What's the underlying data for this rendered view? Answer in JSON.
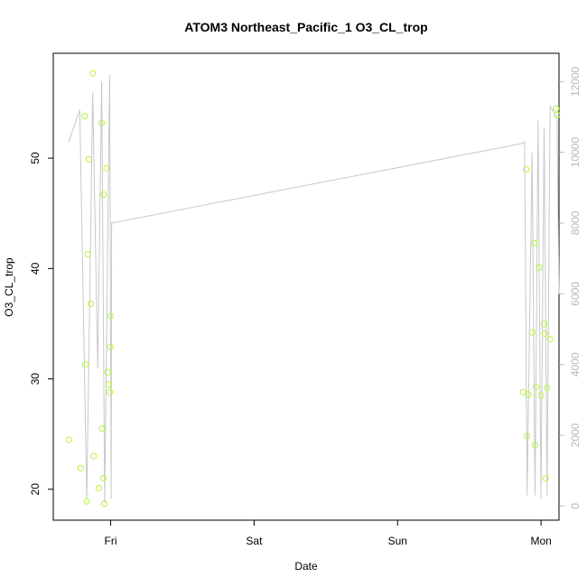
{
  "chart_data": {
    "type": "scatter",
    "title": "ATOM3 Northeast_Pacific_1 O3_CL_trop",
    "xlabel": "Date",
    "ylabel": "O3_CL_trop",
    "x_ticks": [
      "Fri",
      "Sat",
      "Sun",
      "Mon"
    ],
    "y_ticks": [
      "20",
      "30",
      "40",
      "50"
    ],
    "y2_ticks": [
      "0",
      "2000",
      "4000",
      "6000",
      "8000",
      "10000",
      "12000"
    ],
    "xlim": [
      "Thu 14:24",
      "Mon 03:00"
    ],
    "ylim": [
      17.2,
      59.5
    ],
    "y2lim": [
      -400,
      12800
    ],
    "grid": false,
    "colors": {
      "points": "#b7f542",
      "line": "#c8c8c8",
      "axis": "#000000",
      "right_axis": "#b8b8b8"
    },
    "series": [
      {
        "kind": "points",
        "axis": "left",
        "points": [
          {
            "x": "Thu 17:00",
            "y": 24.5
          },
          {
            "x": "Thu 19:00",
            "y": 21.9
          },
          {
            "x": "Thu 19:40",
            "y": 53.8
          },
          {
            "x": "Thu 19:45",
            "y": 31.3
          },
          {
            "x": "Thu 20:00",
            "y": 18.9
          },
          {
            "x": "Thu 20:10",
            "y": 41.3
          },
          {
            "x": "Thu 20:20",
            "y": 49.9
          },
          {
            "x": "Thu 20:40",
            "y": 36.8
          },
          {
            "x": "Thu 21:00",
            "y": 57.7
          },
          {
            "x": "Thu 21:10",
            "y": 23.0
          },
          {
            "x": "Thu 22:00",
            "y": 20.1
          },
          {
            "x": "Thu 22:30",
            "y": 53.2
          },
          {
            "x": "Thu 22:35",
            "y": 25.5
          },
          {
            "x": "Thu 22:45",
            "y": 21.0
          },
          {
            "x": "Thu 22:50",
            "y": 46.7
          },
          {
            "x": "Thu 22:55",
            "y": 18.7
          },
          {
            "x": "Thu 23:20",
            "y": 49.1
          },
          {
            "x": "Thu 23:30",
            "y": 30.6
          },
          {
            "x": "Thu 23:40",
            "y": 29.5
          },
          {
            "x": "Thu 23:50",
            "y": 28.8
          },
          {
            "x": "Thu 23:55",
            "y": 32.9
          },
          {
            "x": "Fri 00:00",
            "y": 35.7
          },
          {
            "x": "Sun 21:00",
            "y": 28.8
          },
          {
            "x": "Sun 21:30",
            "y": 49.0
          },
          {
            "x": "Sun 21:40",
            "y": 24.8
          },
          {
            "x": "Sun 21:50",
            "y": 28.6
          },
          {
            "x": "Sun 22:30",
            "y": 34.2
          },
          {
            "x": "Sun 22:50",
            "y": 42.3
          },
          {
            "x": "Sun 23:00",
            "y": 24.0
          },
          {
            "x": "Sun 23:10",
            "y": 29.3
          },
          {
            "x": "Sun 23:40",
            "y": 40.1
          },
          {
            "x": "Sun 23:59",
            "y": 28.5
          },
          {
            "x": "Mon 00:30",
            "y": 35.0
          },
          {
            "x": "Mon 00:35",
            "y": 34.1
          },
          {
            "x": "Mon 00:45",
            "y": 21.0
          },
          {
            "x": "Mon 01:00",
            "y": 29.2
          },
          {
            "x": "Mon 01:30",
            "y": 33.6
          },
          {
            "x": "Mon 02:30",
            "y": 54.5
          },
          {
            "x": "Mon 02:40",
            "y": 53.9
          }
        ]
      },
      {
        "kind": "line",
        "axis": "right",
        "points": [
          {
            "x": "Thu 17:00",
            "y": 10300
          },
          {
            "x": "Thu 18:50",
            "y": 11200
          },
          {
            "x": "Thu 20:00",
            "y": 200
          },
          {
            "x": "Thu 21:00",
            "y": 11700
          },
          {
            "x": "Thu 21:50",
            "y": 3900
          },
          {
            "x": "Thu 22:30",
            "y": 12000
          },
          {
            "x": "Thu 23:00",
            "y": 100
          },
          {
            "x": "Thu 23:50",
            "y": 12200
          },
          {
            "x": "Fri 00:05",
            "y": 200
          },
          {
            "x": "Fri 00:10",
            "y": 8000
          },
          {
            "x": "Sun 20:50",
            "y": 10250
          },
          {
            "x": "Sun 21:15",
            "y": 10300
          },
          {
            "x": "Sun 21:40",
            "y": 300
          },
          {
            "x": "Sun 22:30",
            "y": 10000
          },
          {
            "x": "Sun 23:00",
            "y": 300
          },
          {
            "x": "Sun 23:30",
            "y": 10900
          },
          {
            "x": "Sun 23:59",
            "y": 200
          },
          {
            "x": "Mon 00:30",
            "y": 10700
          },
          {
            "x": "Mon 01:00",
            "y": 300
          },
          {
            "x": "Mon 01:30",
            "y": 11300
          },
          {
            "x": "Mon 02:40",
            "y": 11000
          },
          {
            "x": "Mon 03:00",
            "y": 6000
          }
        ]
      }
    ]
  }
}
